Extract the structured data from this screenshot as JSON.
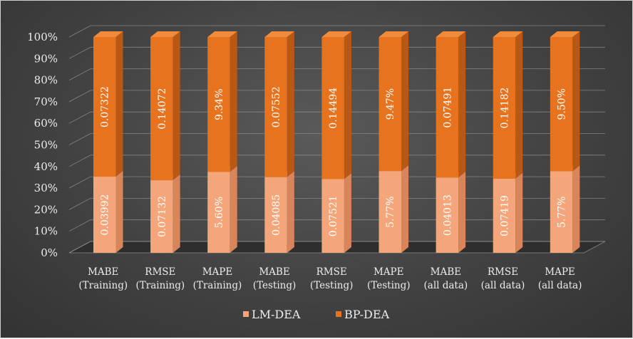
{
  "chart_data": {
    "type": "bar",
    "stacked": "percent",
    "three_d": true,
    "categories": [
      [
        "MABE",
        "(Training)"
      ],
      [
        "RMSE",
        "(Training)"
      ],
      [
        "MAPE",
        "(Training)"
      ],
      [
        "MABE",
        "(Testing)"
      ],
      [
        "RMSE",
        "(Testing)"
      ],
      [
        "MAPE",
        "(Testing)"
      ],
      [
        "MABE",
        "(all data)"
      ],
      [
        "RMSE",
        "(all data)"
      ],
      [
        "MAPE",
        "(all data)"
      ]
    ],
    "series": [
      {
        "name": "LM-DEA",
        "values": [
          0.03992,
          0.07132,
          5.6,
          0.04085,
          0.07521,
          5.77,
          0.04013,
          0.07419,
          5.77
        ],
        "labels": [
          "0.03992",
          "0.07132",
          "5.60%",
          "0.04085",
          "0.07521",
          "5.77%",
          "0.04013",
          "0.07419",
          "5.77%"
        ],
        "color_front": "#f4a57a",
        "color_side": "#d8855c",
        "color_top": "#f8c4a3"
      },
      {
        "name": "BP-DEA",
        "values": [
          0.07322,
          0.14072,
          9.34,
          0.07552,
          0.14494,
          9.47,
          0.07491,
          0.14182,
          9.5
        ],
        "labels": [
          "0.07322",
          "0.14072",
          "9.34%",
          "0.07552",
          "0.14494",
          "9.47%",
          "0.07491",
          "0.14182",
          "9.50%"
        ],
        "color_front": "#e8731f",
        "color_side": "#b95815",
        "color_top": "#f08b3c"
      }
    ],
    "yticks": [
      "0%",
      "10%",
      "20%",
      "30%",
      "40%",
      "50%",
      "60%",
      "70%",
      "80%",
      "90%",
      "100%"
    ],
    "ylim": [
      0,
      100
    ],
    "grid": true,
    "legend_position": "bottom",
    "title": "",
    "xlabel": "",
    "ylabel": ""
  }
}
